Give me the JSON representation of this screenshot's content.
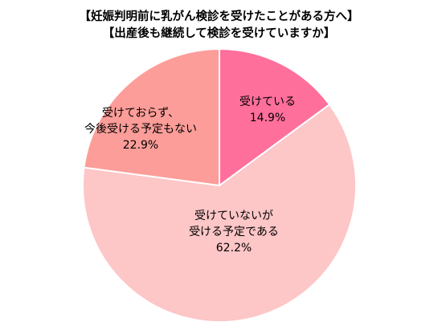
{
  "chart_data": {
    "type": "pie",
    "title": "【妊娠判明前に乳がん検診を受けたことがある方へ】",
    "subtitle": "【出産後も継続して検診を受けていますか】",
    "slices": [
      {
        "label_lines": [
          "受けている"
        ],
        "value": 14.9,
        "value_label": "14.9%",
        "color": "#ff6f9c"
      },
      {
        "label_lines": [
          "受けていないが",
          "受ける予定である"
        ],
        "value": 62.2,
        "value_label": "62.2%",
        "color": "#fdc6c7"
      },
      {
        "label_lines": [
          "受けておらず、",
          "今後受ける予定もない"
        ],
        "value": 22.9,
        "value_label": "22.9%",
        "color": "#fc9d99"
      }
    ]
  }
}
